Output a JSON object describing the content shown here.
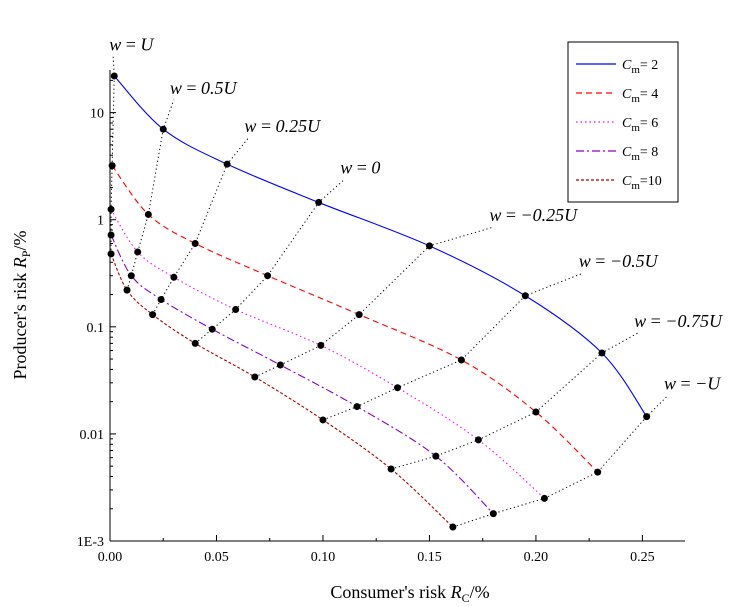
{
  "chart_data": {
    "type": "line",
    "xlabel_prefix": "Consumer's risk ",
    "xlabel_var": "R",
    "xlabel_sub": "C",
    "xlabel_suffix": "/%",
    "ylabel_prefix": "Producer's risk ",
    "ylabel_var": "R",
    "ylabel_sub": "P",
    "ylabel_suffix": "/%",
    "xlim": [
      0,
      0.27
    ],
    "ylim": [
      0.001,
      25
    ],
    "yscale": "log",
    "x_ticks": [
      "0.00",
      "0.05",
      "0.10",
      "0.15",
      "0.20",
      "0.25"
    ],
    "x_tick_values": [
      0,
      0.05,
      0.1,
      0.15,
      0.2,
      0.25
    ],
    "y_ticks": [
      "1E-3",
      "0.01",
      "0.1",
      "1",
      "10"
    ],
    "y_tick_values": [
      0.001,
      0.01,
      0.1,
      1,
      10
    ],
    "legend_position": "top-right",
    "series": [
      {
        "var": "C",
        "sub": "m",
        "eq": "= 2",
        "color": "#0000ff",
        "dash": "solid",
        "x": [
          0.002,
          0.025,
          0.055,
          0.098,
          0.15,
          0.195,
          0.231,
          0.252
        ],
        "y": [
          22,
          7,
          3.3,
          1.45,
          0.57,
          0.195,
          0.057,
          0.0145
        ]
      },
      {
        "var": "C",
        "sub": "m",
        "eq": "= 4",
        "color": "#ff0000",
        "dash": "dashed",
        "x": [
          0.001,
          0.018,
          0.04,
          0.074,
          0.117,
          0.165,
          0.2,
          0.229
        ],
        "y": [
          3.2,
          1.12,
          0.6,
          0.3,
          0.13,
          0.049,
          0.016,
          0.0044
        ]
      },
      {
        "var": "C",
        "sub": "m",
        "eq": "= 6",
        "color": "#ff00ff",
        "dash": "dotted",
        "x": [
          0.0005,
          0.013,
          0.03,
          0.059,
          0.099,
          0.135,
          0.173,
          0.204
        ],
        "y": [
          1.25,
          0.5,
          0.29,
          0.145,
          0.067,
          0.027,
          0.0088,
          0.0025
        ]
      },
      {
        "var": "C",
        "sub": "m",
        "eq": "= 8",
        "color": "#8800cc",
        "dash": "dashdot",
        "x": [
          0.0005,
          0.01,
          0.024,
          0.048,
          0.08,
          0.116,
          0.153,
          0.18
        ],
        "y": [
          0.72,
          0.3,
          0.18,
          0.095,
          0.044,
          0.018,
          0.0062,
          0.0018
        ]
      },
      {
        "var": "C",
        "sub": "m",
        "eq": "=10",
        "color": "#aa0000",
        "dash": "dashed-fine",
        "x": [
          0.0005,
          0.008,
          0.02,
          0.04,
          0.068,
          0.1,
          0.132,
          0.161
        ],
        "y": [
          0.48,
          0.22,
          0.13,
          0.07,
          0.034,
          0.0135,
          0.0047,
          0.00135
        ]
      }
    ],
    "annotations": [
      {
        "lhs": "w",
        "op": " = ",
        "rhs": "U",
        "x": 0.0015,
        "y": 38
      },
      {
        "lhs": "w",
        "op": " = ",
        "rhs": "0.5U",
        "x": 0.03,
        "y": 15
      },
      {
        "lhs": "w",
        "op": " = ",
        "rhs": "0.25U",
        "x": 0.065,
        "y": 6.6
      },
      {
        "lhs": "w",
        "op": " = ",
        "rhs": "0",
        "x": 0.11,
        "y": 2.7
      },
      {
        "lhs": "w",
        "op": " = ",
        "rhs": "−0.25U",
        "x": 0.18,
        "y": 0.97
      },
      {
        "lhs": "w",
        "op": " = ",
        "rhs": "−0.5U",
        "x": 0.222,
        "y": 0.36
      },
      {
        "lhs": "w",
        "op": " = ",
        "rhs": "−0.75U",
        "x": 0.248,
        "y": 0.1
      },
      {
        "lhs": "w",
        "op": " = ",
        "rhs": "−U",
        "x": 0.262,
        "y": 0.026
      }
    ]
  }
}
